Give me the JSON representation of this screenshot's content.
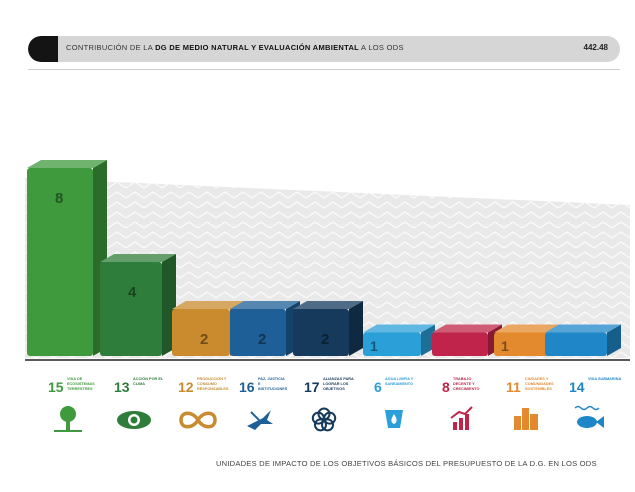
{
  "header": {
    "text_prefix": "CONTRIBUCIÓN DE LA",
    "text_bold": "DG DE MEDIO NATURAL Y EVALUACIÓN AMBIENTAL",
    "text_suffix": "A LOS ODS",
    "value": "442.48"
  },
  "footer": {
    "caption": "UNIDADES DE IMPACTO DE LOS OBJETIVOS BÁSICOS DEL PRESUPUESTO DE LA D.G. EN LOS ODS"
  },
  "chart_data": {
    "type": "bar",
    "title": "",
    "xlabel": "",
    "ylabel": "",
    "categories": [
      "15",
      "13",
      "12",
      "16",
      "17",
      "6",
      "8",
      "11",
      "14"
    ],
    "category_labels": [
      "VIDA DE ECOSISTEMAS TERRESTRES",
      "ACCIÓN POR EL CLIMA",
      "PRODUCCIÓN Y CONSUMO RESPONSABLES",
      "PAZ, JUSTICIA E INSTITUCIONES SÓLIDAS",
      "ALIANZAS PARA LOGRAR LOS OBJETIVOS",
      "AGUA LIMPIA Y SANEAMIENTO",
      "TRABAJO DECENTE Y CRECIMIENTO ECONÓMICO",
      "CIUDADES Y COMUNIDADES SOSTENIBLES",
      "VIDA SUBMARINA"
    ],
    "values": [
      8,
      4,
      2,
      2,
      2,
      1,
      1,
      1,
      1
    ],
    "value_labels": [
      "8",
      "4",
      "2",
      "2",
      "2",
      "1",
      "",
      "1",
      ""
    ],
    "colors": [
      "#3f9a3d",
      "#2f7d3a",
      "#c98b2e",
      "#1d5f96",
      "#163a5c",
      "#2a9fd8",
      "#c0244a",
      "#e38a2e",
      "#1f86c8"
    ],
    "icons": [
      "tree-icon",
      "eye-globe-icon",
      "infinity-icon",
      "dove-icon",
      "flower-icon",
      "water-drop-icon",
      "growth-chart-icon",
      "city-icon",
      "fish-icon"
    ],
    "ylim": [
      0,
      8
    ],
    "grid": false
  }
}
